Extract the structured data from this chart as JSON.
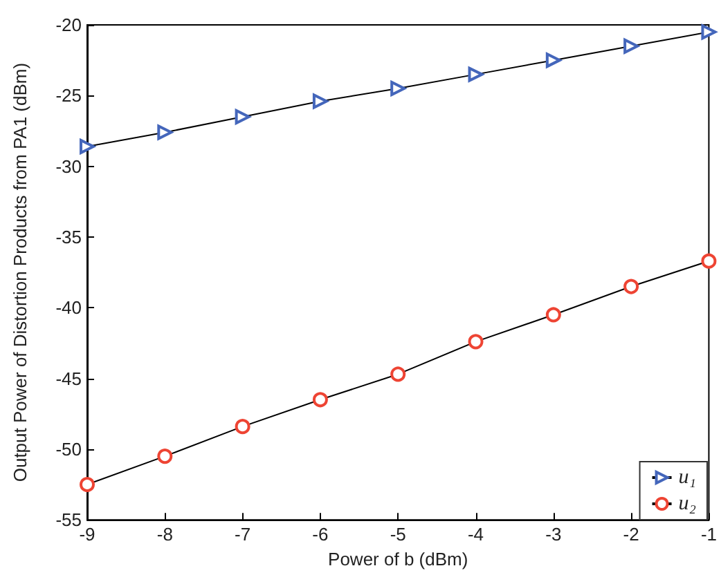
{
  "chart_data": {
    "type": "line",
    "xlabel": "Power of b (dBm)",
    "ylabel": "Output Power of Distortion Products from PA1 (dBm)",
    "x": [
      -9,
      -8,
      -7,
      -6,
      -5,
      -4,
      -3,
      -2,
      -1
    ],
    "series": [
      {
        "name": "u₁",
        "color": "#4466bb",
        "marker": "triangle",
        "values": [
          -28.6,
          -27.6,
          -26.5,
          -25.4,
          -24.5,
          -23.5,
          -22.5,
          -21.5,
          -20.5
        ]
      },
      {
        "name": "u₂",
        "color": "#ee4433",
        "marker": "circle",
        "values": [
          -52.5,
          -50.5,
          -48.4,
          -46.5,
          -44.7,
          -42.4,
          -40.5,
          -38.5,
          -36.7
        ]
      }
    ],
    "xlim": [
      -9,
      -1
    ],
    "xticks": [
      -9,
      -8,
      -7,
      -6,
      -5,
      -4,
      -3,
      -2,
      -1
    ],
    "ylim": [
      -55,
      -20
    ],
    "yticks": [
      -55,
      -50,
      -45,
      -40,
      -35,
      -30,
      -25,
      -20
    ],
    "legend": "bottom right",
    "line_style": "solid"
  }
}
